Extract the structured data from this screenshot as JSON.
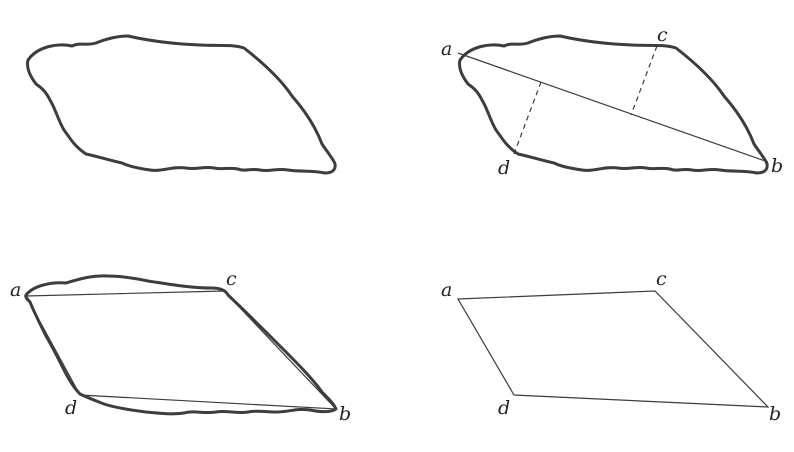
{
  "panels": {
    "top_left": {},
    "top_right": {
      "labels": {
        "a": "a",
        "b": "b",
        "c": "c",
        "d": "d"
      }
    },
    "bottom_left": {
      "labels": {
        "a": "a",
        "b": "b",
        "c": "c",
        "d": "d"
      }
    },
    "bottom_right": {
      "labels": {
        "a": "a",
        "b": "b",
        "c": "c",
        "d": "d"
      }
    }
  },
  "colors": {
    "stroke": "#3f3c3a",
    "label": "#222222",
    "background": "#ffffff"
  }
}
